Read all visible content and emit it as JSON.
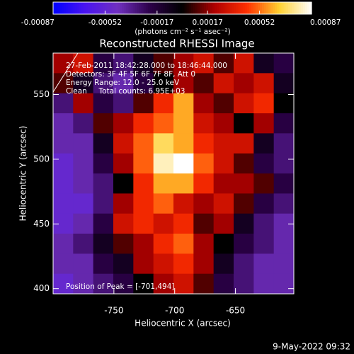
{
  "chart_data": {
    "type": "heatmap",
    "title": "Reconstructed RHESSI Image",
    "x_label": "Heliocentric X (arcsec)",
    "y_label": "Heliocentric Y (arcsec)",
    "colorbar_label": "(photons cm⁻² s⁻¹ asec⁻²)",
    "annotations": [
      "27-Feb-2011 18:42:28.000 to 18:46:44.000",
      "Detectors: 3F 4F 5F 6F 7F 8F, Att 0",
      "Energy Range: 12.0 - 25.0 keV",
      "Clean     Total counts: 6.95E+03"
    ],
    "peak_label": "Position of Peak = [-701,494]",
    "footer": "9-May-2022 09:32",
    "xlim": [
      -800,
      -602
    ],
    "ylim": [
      396,
      582
    ],
    "xticks": [
      -750,
      -700,
      -650
    ],
    "yticks": [
      400,
      450,
      500,
      550
    ],
    "clim": [
      -0.00087,
      0.00087
    ],
    "cticks": [
      -0.00087,
      -0.00052,
      -0.00017,
      0.00017,
      0.00052,
      0.00087
    ],
    "colormap": [
      "#0000ff",
      "#4a14f0",
      "#7030c0",
      "#2c0048",
      "#000000",
      "#b00000",
      "#ff3000",
      "#ffd030",
      "#ffffff"
    ],
    "x": [
      -791.75,
      -775.25,
      -758.75,
      -742.25,
      -725.75,
      -709.25,
      -692.75,
      -676.25,
      -659.75,
      -643.25,
      -626.75,
      -610.25
    ],
    "y": [
      574.25,
      558.75,
      543.25,
      527.75,
      512.25,
      496.75,
      481.25,
      465.75,
      450.25,
      434.75,
      419.25,
      403.75
    ],
    "z": [
      [
        0.0002,
        0.0003,
        -0.0002,
        -0.0003,
        -0.0001,
        0.0001,
        0.0002,
        0.0003,
        0.0001,
        0.0003,
        -0.0001,
        -0.0002
      ],
      [
        0.0001,
        -0.0001,
        -0.0003,
        -0.0004,
        -0.0002,
        0,
        0.0002,
        0.0001,
        0.0003,
        0.0002,
        0.0003,
        -0.0001
      ],
      [
        -0.0003,
        0.0002,
        -0.0002,
        -0.0003,
        0.0001,
        0.0004,
        0.0006,
        0.0002,
        0.0001,
        0.0003,
        0.0004,
        0
      ],
      [
        -0.0004,
        -0.0003,
        0.0001,
        0.0002,
        0.0004,
        0.0005,
        0.0006,
        0.0003,
        0.0002,
        0,
        0.0002,
        -0.0002
      ],
      [
        -0.0004,
        -0.0004,
        -0.0001,
        0.0003,
        0.0005,
        0.0007,
        0.0006,
        0.0004,
        0.0003,
        0.0003,
        -0.0001,
        -0.0003
      ],
      [
        -0.0005,
        -0.0004,
        -0.0002,
        0.0002,
        0.0005,
        0.0008,
        0.00087,
        0.0005,
        0.0003,
        0.0001,
        -0.0002,
        -0.0003
      ],
      [
        -0.0005,
        -0.0004,
        -0.0003,
        0,
        0.0004,
        0.0006,
        0.0006,
        0.0004,
        0.0002,
        0.0002,
        0.0001,
        -0.0002
      ],
      [
        -0.0005,
        -0.0005,
        -0.0003,
        0.0002,
        0.0004,
        0.0005,
        0.0003,
        0.0002,
        0.0003,
        0.0001,
        -0.0002,
        -0.0003
      ],
      [
        -0.0005,
        -0.0004,
        -0.0002,
        0.0003,
        0.0004,
        0.0003,
        0.0004,
        0.0001,
        0.0002,
        -0.0001,
        -0.0003,
        -0.0004
      ],
      [
        -0.0004,
        -0.0003,
        -0.0001,
        0.0001,
        0.0002,
        0.0004,
        0.0005,
        0.0002,
        0,
        -0.0002,
        -0.0003,
        -0.0004
      ],
      [
        -0.0004,
        -0.0004,
        -0.0002,
        -0.0001,
        0.0002,
        0.0003,
        0.0004,
        0.0002,
        -0.0001,
        -0.0003,
        -0.0004,
        -0.0004
      ],
      [
        -0.0005,
        -0.0004,
        -0.0003,
        -0.0002,
        0,
        0.0002,
        0.0003,
        0.0001,
        -0.0002,
        -0.0003,
        -0.0004,
        -0.0004
      ]
    ]
  }
}
